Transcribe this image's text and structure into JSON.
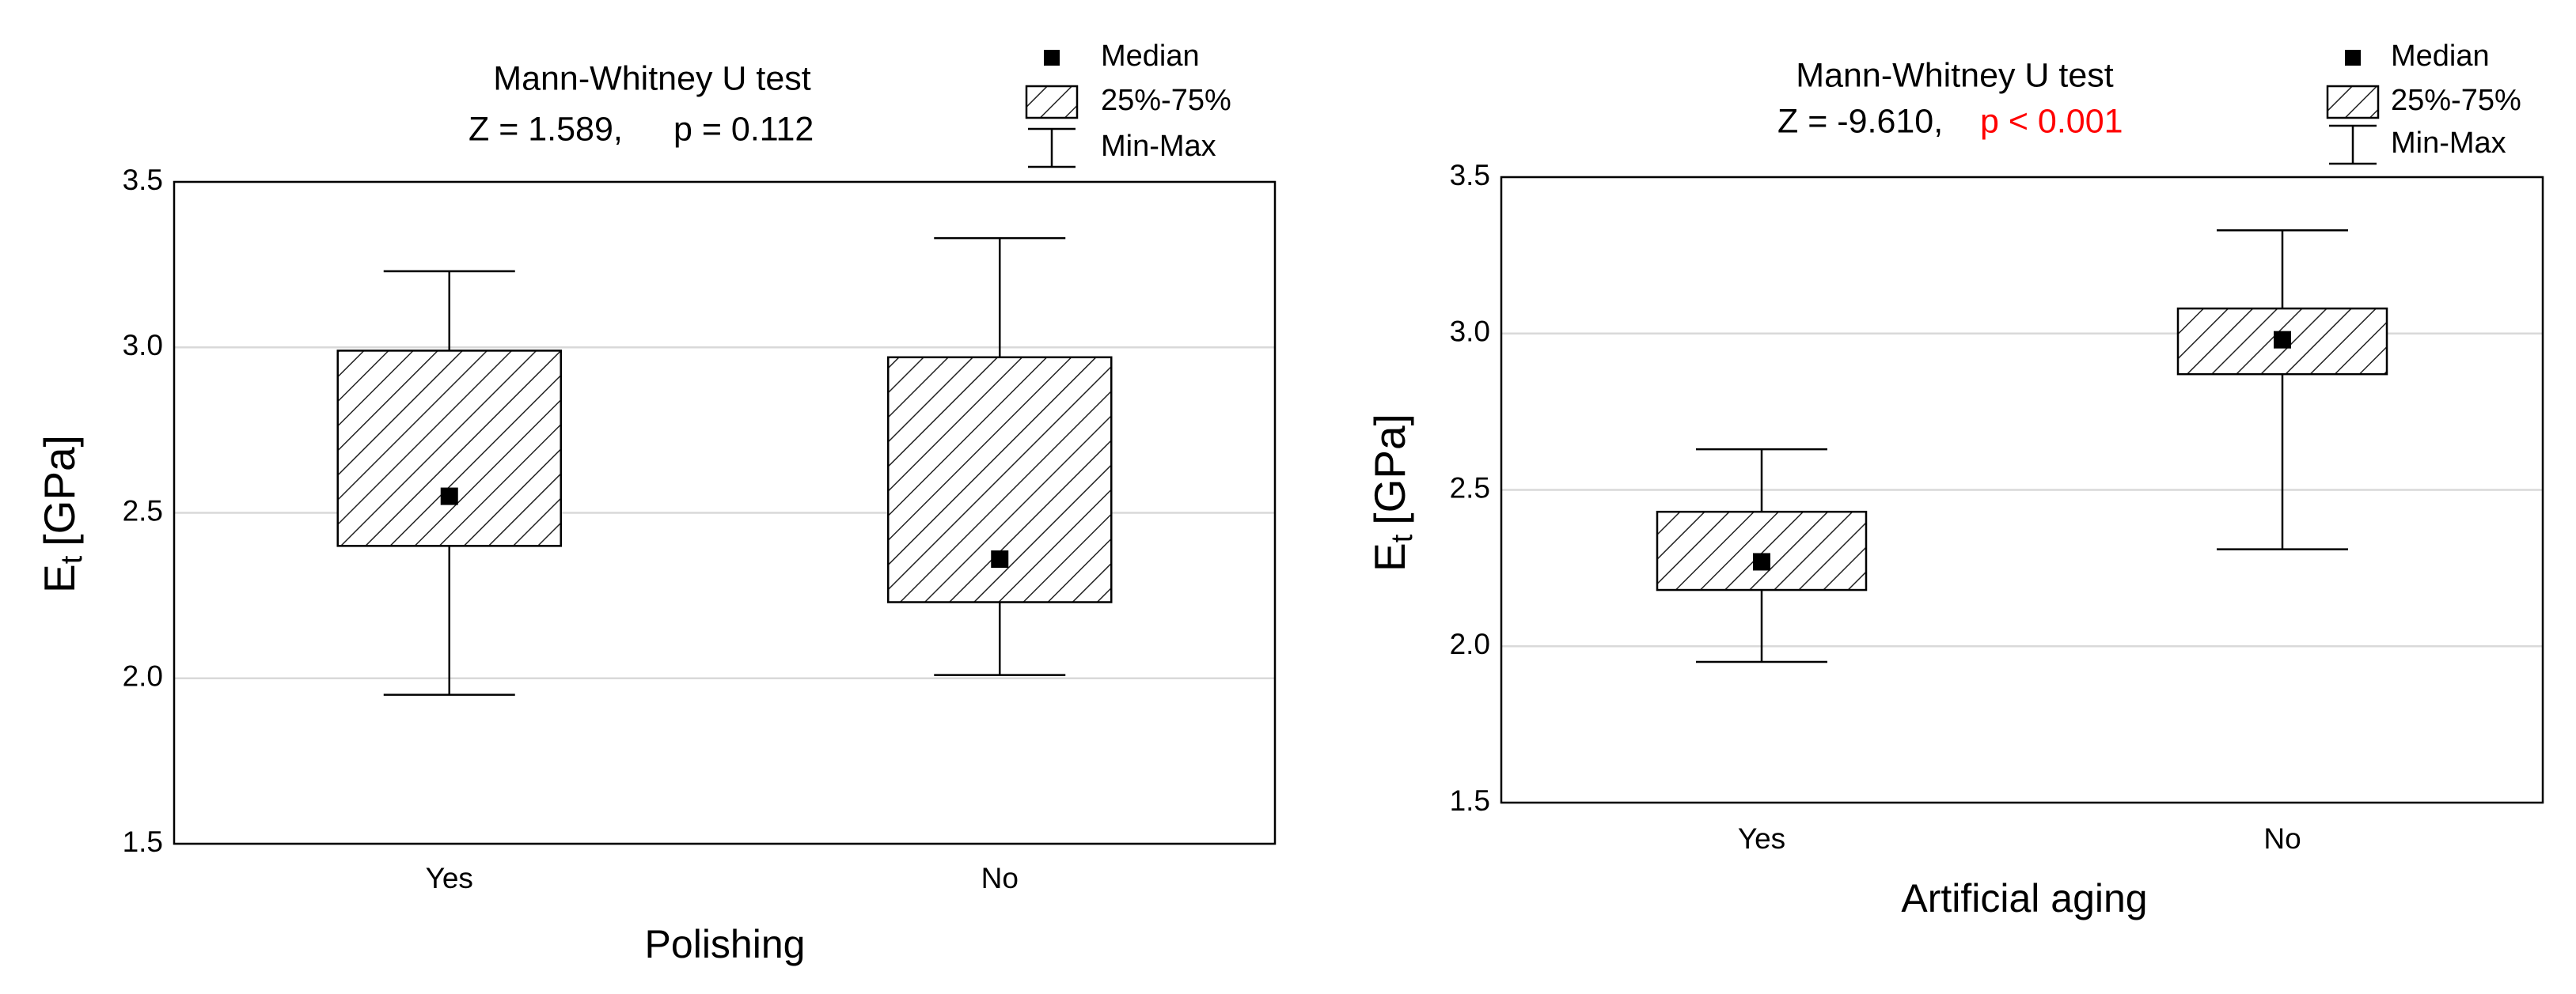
{
  "chart_data": [
    {
      "type": "box",
      "title": "Mann-Whitney U test",
      "z_text": "Z = 1.589,",
      "p_text": "p = 0.112",
      "p_color": "#000000",
      "y_label": {
        "main": "E",
        "sub": "t",
        "unit": "[GPa]"
      },
      "x_label": "Polishing",
      "legend": [
        "Median",
        "25%-75%",
        "Min-Max"
      ],
      "categories": [
        "Yes",
        "No"
      ],
      "min": [
        1.95,
        2.01
      ],
      "q1": [
        2.4,
        2.23
      ],
      "median": [
        2.55,
        2.36
      ],
      "q3": [
        2.99,
        2.97
      ],
      "max": [
        3.23,
        3.33
      ],
      "ylim": [
        1.5,
        3.5
      ],
      "yticks": [
        1.5,
        {
          "value": 2,
          "label": "2.0"
        },
        2.5,
        {
          "value": 3,
          "label": "3.0"
        },
        3.5
      ],
      "grid": true
    },
    {
      "type": "box",
      "title": "Mann-Whitney U test",
      "z_text": "Z = -9.610,",
      "p_text": "p < 0.001",
      "p_color": "#ff0000",
      "y_label": {
        "main": "E",
        "sub": "t",
        "unit": "[GPa]"
      },
      "x_label": "Artificial aging",
      "legend": [
        "Median",
        "25%-75%",
        "Min-Max"
      ],
      "categories": [
        "Yes",
        "No"
      ],
      "min": [
        1.95,
        2.31
      ],
      "q1": [
        2.18,
        2.87
      ],
      "median": [
        2.27,
        2.98
      ],
      "q3": [
        2.43,
        3.08
      ],
      "max": [
        2.63,
        3.33
      ],
      "ylim": [
        1.5,
        3.5
      ],
      "yticks": [
        1.5,
        {
          "value": 2,
          "label": "2.0"
        },
        2.5,
        {
          "value": 3,
          "label": "3.0"
        },
        3.5
      ],
      "grid": true
    }
  ]
}
